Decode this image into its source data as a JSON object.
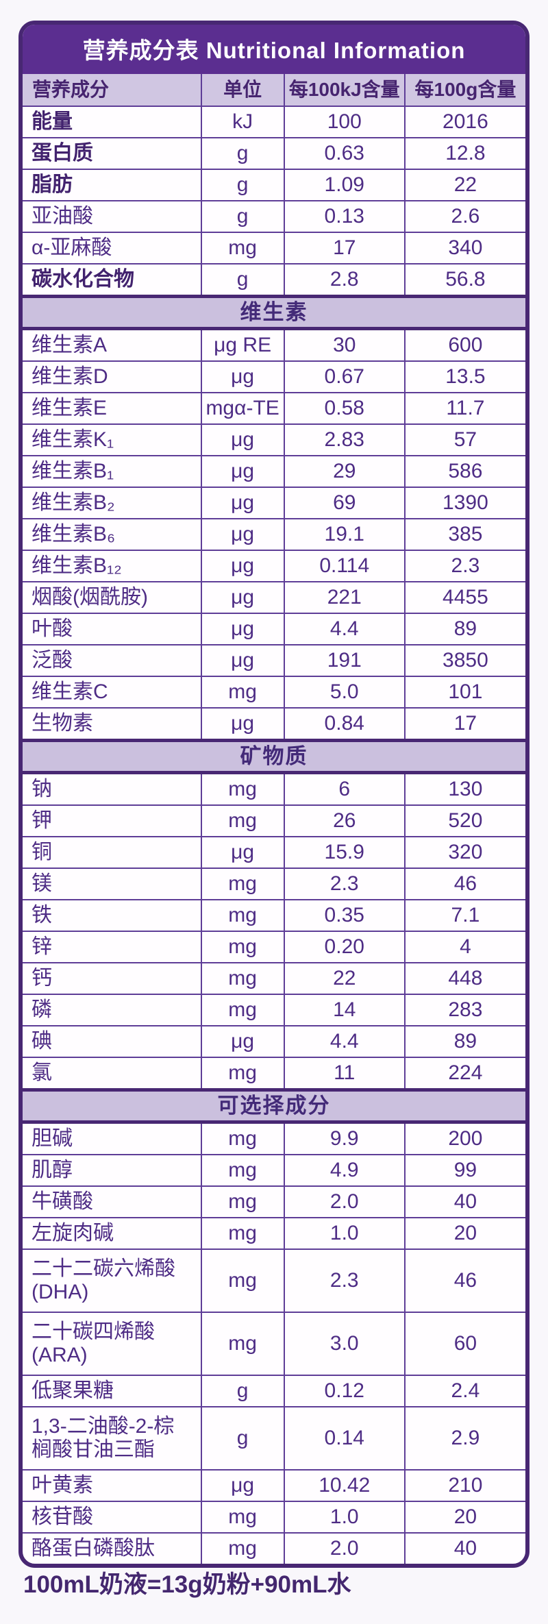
{
  "title": "营养成分表 Nutritional Information",
  "columns": [
    "营养成分",
    "单位",
    "每100kJ含量",
    "每100g含量"
  ],
  "sections": [
    {
      "name": "",
      "rows": [
        {
          "name": "能量",
          "unit": "kJ",
          "per100kJ": "100",
          "per100g": "2016",
          "bold": true
        },
        {
          "name": "蛋白质",
          "unit": "g",
          "per100kJ": "0.63",
          "per100g": "12.8",
          "bold": true
        },
        {
          "name": "脂肪",
          "unit": "g",
          "per100kJ": "1.09",
          "per100g": "22",
          "bold": true
        },
        {
          "name": "亚油酸",
          "unit": "g",
          "per100kJ": "0.13",
          "per100g": "2.6"
        },
        {
          "name": "α-亚麻酸",
          "unit": "mg",
          "per100kJ": "17",
          "per100g": "340"
        },
        {
          "name": "碳水化合物",
          "unit": "g",
          "per100kJ": "2.8",
          "per100g": "56.8",
          "bold": true
        }
      ]
    },
    {
      "name": "维生素",
      "rows": [
        {
          "name": "维生素A",
          "unit": "μg RE",
          "per100kJ": "30",
          "per100g": "600"
        },
        {
          "name": "维生素D",
          "unit": "μg",
          "per100kJ": "0.67",
          "per100g": "13.5"
        },
        {
          "name": "维生素E",
          "unit": "mgα-TE",
          "per100kJ": "0.58",
          "per100g": "11.7"
        },
        {
          "name": "维生素K₁",
          "unit": "μg",
          "per100kJ": "2.83",
          "per100g": "57"
        },
        {
          "name": "维生素B₁",
          "unit": "μg",
          "per100kJ": "29",
          "per100g": "586"
        },
        {
          "name": "维生素B₂",
          "unit": "μg",
          "per100kJ": "69",
          "per100g": "1390"
        },
        {
          "name": "维生素B₆",
          "unit": "μg",
          "per100kJ": "19.1",
          "per100g": "385"
        },
        {
          "name": "维生素B₁₂",
          "unit": "μg",
          "per100kJ": "0.114",
          "per100g": "2.3"
        },
        {
          "name": "烟酸(烟酰胺)",
          "unit": "μg",
          "per100kJ": "221",
          "per100g": "4455"
        },
        {
          "name": "叶酸",
          "unit": "μg",
          "per100kJ": "4.4",
          "per100g": "89"
        },
        {
          "name": "泛酸",
          "unit": "μg",
          "per100kJ": "191",
          "per100g": "3850"
        },
        {
          "name": "维生素C",
          "unit": "mg",
          "per100kJ": "5.0",
          "per100g": "101"
        },
        {
          "name": "生物素",
          "unit": "μg",
          "per100kJ": "0.84",
          "per100g": "17"
        }
      ]
    },
    {
      "name": "矿物质",
      "rows": [
        {
          "name": "钠",
          "unit": "mg",
          "per100kJ": "6",
          "per100g": "130"
        },
        {
          "name": "钾",
          "unit": "mg",
          "per100kJ": "26",
          "per100g": "520"
        },
        {
          "name": "铜",
          "unit": "μg",
          "per100kJ": "15.9",
          "per100g": "320"
        },
        {
          "name": "镁",
          "unit": "mg",
          "per100kJ": "2.3",
          "per100g": "46"
        },
        {
          "name": "铁",
          "unit": "mg",
          "per100kJ": "0.35",
          "per100g": "7.1"
        },
        {
          "name": "锌",
          "unit": "mg",
          "per100kJ": "0.20",
          "per100g": "4"
        },
        {
          "name": "钙",
          "unit": "mg",
          "per100kJ": "22",
          "per100g": "448"
        },
        {
          "name": "磷",
          "unit": "mg",
          "per100kJ": "14",
          "per100g": "283"
        },
        {
          "name": "碘",
          "unit": "μg",
          "per100kJ": "4.4",
          "per100g": "89"
        },
        {
          "name": "氯",
          "unit": "mg",
          "per100kJ": "11",
          "per100g": "224"
        }
      ]
    },
    {
      "name": "可选择成分",
      "rows": [
        {
          "name": "胆碱",
          "unit": "mg",
          "per100kJ": "9.9",
          "per100g": "200"
        },
        {
          "name": "肌醇",
          "unit": "mg",
          "per100kJ": "4.9",
          "per100g": "99"
        },
        {
          "name": "牛磺酸",
          "unit": "mg",
          "per100kJ": "2.0",
          "per100g": "40"
        },
        {
          "name": "左旋肉碱",
          "unit": "mg",
          "per100kJ": "1.0",
          "per100g": "20"
        },
        {
          "name": "二十二碳六烯酸\n(DHA)",
          "unit": "mg",
          "per100kJ": "2.3",
          "per100g": "46",
          "tall": true
        },
        {
          "name": "二十碳四烯酸\n(ARA)",
          "unit": "mg",
          "per100kJ": "3.0",
          "per100g": "60",
          "tall": true
        },
        {
          "name": "低聚果糖",
          "unit": "g",
          "per100kJ": "0.12",
          "per100g": "2.4"
        },
        {
          "name": "1,3-二油酸-2-棕\n榈酸甘油三酯",
          "unit": "g",
          "per100kJ": "0.14",
          "per100g": "2.9",
          "tall": true
        },
        {
          "name": "叶黄素",
          "unit": "μg",
          "per100kJ": "10.42",
          "per100g": "210"
        },
        {
          "name": "核苷酸",
          "unit": "mg",
          "per100kJ": "1.0",
          "per100g": "20"
        },
        {
          "name": "酪蛋白磷酸肽",
          "unit": "mg",
          "per100kJ": "2.0",
          "per100g": "40"
        }
      ]
    }
  ],
  "footer": "100mL奶液=13g奶粉+90mL水",
  "colors": {
    "title_bar_bg": "#5b2e90",
    "title_text": "#ffffff",
    "header_row_bg": "#d0c6e2",
    "section_band_bg": "#cbc0de",
    "text_purple": "#4e2c85",
    "border_inner": "#5e3d97",
    "border_outer": "#482773",
    "page_bg": "#f9f7fb"
  }
}
